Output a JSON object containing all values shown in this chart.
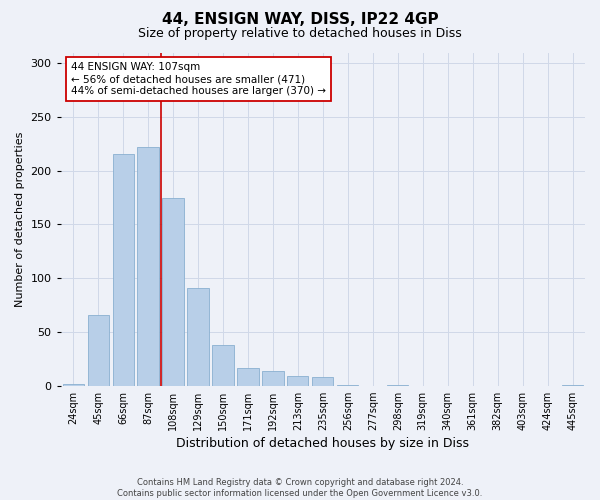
{
  "title": "44, ENSIGN WAY, DISS, IP22 4GP",
  "subtitle": "Size of property relative to detached houses in Diss",
  "xlabel": "Distribution of detached houses by size in Diss",
  "ylabel": "Number of detached properties",
  "categories": [
    "24sqm",
    "45sqm",
    "66sqm",
    "87sqm",
    "108sqm",
    "129sqm",
    "150sqm",
    "171sqm",
    "192sqm",
    "213sqm",
    "235sqm",
    "256sqm",
    "277sqm",
    "298sqm",
    "319sqm",
    "340sqm",
    "361sqm",
    "382sqm",
    "403sqm",
    "424sqm",
    "445sqm"
  ],
  "values": [
    2,
    66,
    216,
    222,
    175,
    91,
    38,
    16,
    14,
    9,
    8,
    1,
    0,
    1,
    0,
    0,
    0,
    0,
    0,
    0,
    1
  ],
  "bar_color": "#b8cfe8",
  "bar_edge_color": "#8ab0d0",
  "grid_color": "#d0d8e8",
  "background_color": "#eef1f8",
  "marker_index": 4,
  "marker_label_line1": "44 ENSIGN WAY: 107sqm",
  "marker_label_line2": "← 56% of detached houses are smaller (471)",
  "marker_label_line3": "44% of semi-detached houses are larger (370) →",
  "marker_color": "#cc0000",
  "annotation_box_facecolor": "#ffffff",
  "annotation_box_edgecolor": "#cc0000",
  "footer_line1": "Contains HM Land Registry data © Crown copyright and database right 2024.",
  "footer_line2": "Contains public sector information licensed under the Open Government Licence v3.0.",
  "ylim": [
    0,
    310
  ],
  "yticks": [
    0,
    50,
    100,
    150,
    200,
    250,
    300
  ]
}
